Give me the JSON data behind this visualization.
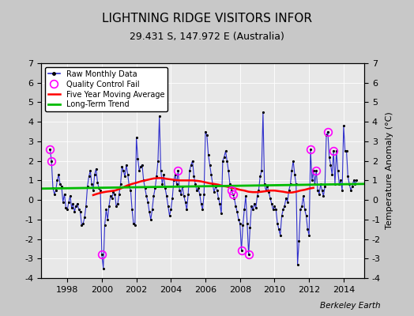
{
  "title": "LIGHTNING RIDGE VISITORS INFOR",
  "subtitle": "29.431 S, 147.972 E (Australia)",
  "ylabel": "Temperature Anomaly (°C)",
  "credit": "Berkeley Earth",
  "ylim": [
    -4,
    7
  ],
  "xlim": [
    1996.5,
    2015.2
  ],
  "yticks": [
    -4,
    -3,
    -2,
    -1,
    0,
    1,
    2,
    3,
    4,
    5,
    6,
    7
  ],
  "xticks": [
    1998,
    2000,
    2002,
    2004,
    2006,
    2008,
    2010,
    2012,
    2014
  ],
  "fig_bg_color": "#c8c8c8",
  "plot_bg_color": "#e8e8e8",
  "raw_color": "#3030cc",
  "ma_color": "#ff0000",
  "trend_color": "#00bb00",
  "qc_color": "#ff00ff",
  "raw_data": [
    [
      1997.0,
      2.6
    ],
    [
      1997.083,
      2.0
    ],
    [
      1997.167,
      0.6
    ],
    [
      1997.25,
      0.3
    ],
    [
      1997.333,
      0.5
    ],
    [
      1997.417,
      1.0
    ],
    [
      1997.5,
      1.3
    ],
    [
      1997.583,
      0.8
    ],
    [
      1997.667,
      0.7
    ],
    [
      1997.75,
      -0.1
    ],
    [
      1997.833,
      0.3
    ],
    [
      1997.917,
      -0.4
    ],
    [
      1998.0,
      -0.5
    ],
    [
      1998.083,
      -0.1
    ],
    [
      1998.167,
      0.2
    ],
    [
      1998.25,
      -0.4
    ],
    [
      1998.333,
      -0.2
    ],
    [
      1998.417,
      -0.6
    ],
    [
      1998.5,
      -0.3
    ],
    [
      1998.583,
      -0.2
    ],
    [
      1998.667,
      -0.5
    ],
    [
      1998.75,
      -0.6
    ],
    [
      1998.833,
      -1.3
    ],
    [
      1998.917,
      -1.2
    ],
    [
      1999.0,
      -0.9
    ],
    [
      1999.083,
      -0.3
    ],
    [
      1999.167,
      0.7
    ],
    [
      1999.25,
      1.2
    ],
    [
      1999.333,
      1.5
    ],
    [
      1999.417,
      0.8
    ],
    [
      1999.5,
      0.5
    ],
    [
      1999.583,
      1.3
    ],
    [
      1999.667,
      1.6
    ],
    [
      1999.75,
      0.9
    ],
    [
      1999.833,
      0.6
    ],
    [
      1999.917,
      0.5
    ],
    [
      2000.0,
      -2.8
    ],
    [
      2000.083,
      -3.5
    ],
    [
      2000.167,
      -1.3
    ],
    [
      2000.25,
      -0.5
    ],
    [
      2000.333,
      -1.0
    ],
    [
      2000.417,
      -0.3
    ],
    [
      2000.5,
      0.2
    ],
    [
      2000.583,
      0.1
    ],
    [
      2000.667,
      0.4
    ],
    [
      2000.75,
      0.3
    ],
    [
      2000.833,
      -0.3
    ],
    [
      2000.917,
      -0.2
    ],
    [
      2001.0,
      0.3
    ],
    [
      2001.083,
      0.8
    ],
    [
      2001.167,
      1.7
    ],
    [
      2001.25,
      1.5
    ],
    [
      2001.333,
      1.2
    ],
    [
      2001.417,
      1.8
    ],
    [
      2001.5,
      1.3
    ],
    [
      2001.583,
      0.7
    ],
    [
      2001.667,
      0.5
    ],
    [
      2001.75,
      -0.5
    ],
    [
      2001.833,
      -1.2
    ],
    [
      2001.917,
      -1.3
    ],
    [
      2002.0,
      3.2
    ],
    [
      2002.083,
      2.1
    ],
    [
      2002.167,
      1.5
    ],
    [
      2002.25,
      1.7
    ],
    [
      2002.333,
      1.8
    ],
    [
      2002.417,
      1.0
    ],
    [
      2002.5,
      0.6
    ],
    [
      2002.583,
      0.2
    ],
    [
      2002.667,
      -0.1
    ],
    [
      2002.75,
      -0.6
    ],
    [
      2002.833,
      -1.0
    ],
    [
      2002.917,
      -0.5
    ],
    [
      2003.0,
      0.2
    ],
    [
      2003.083,
      0.6
    ],
    [
      2003.167,
      1.2
    ],
    [
      2003.25,
      2.0
    ],
    [
      2003.333,
      4.3
    ],
    [
      2003.417,
      1.5
    ],
    [
      2003.5,
      0.8
    ],
    [
      2003.583,
      1.3
    ],
    [
      2003.667,
      0.6
    ],
    [
      2003.75,
      0.2
    ],
    [
      2003.833,
      -0.3
    ],
    [
      2003.917,
      -0.8
    ],
    [
      2004.0,
      -0.5
    ],
    [
      2004.083,
      0.1
    ],
    [
      2004.167,
      1.0
    ],
    [
      2004.25,
      1.3
    ],
    [
      2004.333,
      0.8
    ],
    [
      2004.417,
      1.5
    ],
    [
      2004.5,
      0.5
    ],
    [
      2004.583,
      0.3
    ],
    [
      2004.667,
      0.7
    ],
    [
      2004.75,
      0.2
    ],
    [
      2004.833,
      -0.1
    ],
    [
      2004.917,
      -0.5
    ],
    [
      2005.0,
      0.3
    ],
    [
      2005.083,
      1.5
    ],
    [
      2005.167,
      1.8
    ],
    [
      2005.25,
      2.0
    ],
    [
      2005.333,
      1.2
    ],
    [
      2005.417,
      0.8
    ],
    [
      2005.5,
      0.5
    ],
    [
      2005.583,
      0.6
    ],
    [
      2005.667,
      0.3
    ],
    [
      2005.75,
      -0.2
    ],
    [
      2005.833,
      -0.5
    ],
    [
      2005.917,
      0.3
    ],
    [
      2006.0,
      3.5
    ],
    [
      2006.083,
      3.3
    ],
    [
      2006.167,
      2.3
    ],
    [
      2006.25,
      1.8
    ],
    [
      2006.333,
      1.3
    ],
    [
      2006.417,
      0.8
    ],
    [
      2006.5,
      0.4
    ],
    [
      2006.583,
      0.7
    ],
    [
      2006.667,
      0.5
    ],
    [
      2006.75,
      0.1
    ],
    [
      2006.833,
      -0.2
    ],
    [
      2006.917,
      -0.7
    ],
    [
      2007.0,
      2.0
    ],
    [
      2007.083,
      2.2
    ],
    [
      2007.167,
      2.5
    ],
    [
      2007.25,
      2.0
    ],
    [
      2007.333,
      1.5
    ],
    [
      2007.417,
      0.8
    ],
    [
      2007.5,
      0.5
    ],
    [
      2007.583,
      0.3
    ],
    [
      2007.667,
      0.1
    ],
    [
      2007.75,
      -0.3
    ],
    [
      2007.833,
      -0.6
    ],
    [
      2007.917,
      -1.0
    ],
    [
      2008.0,
      -1.2
    ],
    [
      2008.083,
      -2.6
    ],
    [
      2008.167,
      -1.3
    ],
    [
      2008.25,
      -0.5
    ],
    [
      2008.333,
      0.2
    ],
    [
      2008.417,
      -1.2
    ],
    [
      2008.5,
      -2.8
    ],
    [
      2008.583,
      -1.4
    ],
    [
      2008.667,
      -0.3
    ],
    [
      2008.75,
      -0.5
    ],
    [
      2008.833,
      -0.2
    ],
    [
      2008.917,
      -0.4
    ],
    [
      2009.0,
      0.2
    ],
    [
      2009.083,
      0.5
    ],
    [
      2009.167,
      1.2
    ],
    [
      2009.25,
      1.5
    ],
    [
      2009.333,
      4.5
    ],
    [
      2009.417,
      0.8
    ],
    [
      2009.5,
      0.5
    ],
    [
      2009.583,
      0.7
    ],
    [
      2009.667,
      0.4
    ],
    [
      2009.75,
      0.1
    ],
    [
      2009.833,
      -0.2
    ],
    [
      2009.917,
      -0.5
    ],
    [
      2010.0,
      -0.3
    ],
    [
      2010.083,
      -0.5
    ],
    [
      2010.167,
      -1.2
    ],
    [
      2010.25,
      -1.5
    ],
    [
      2010.333,
      -1.8
    ],
    [
      2010.417,
      -0.8
    ],
    [
      2010.5,
      -0.5
    ],
    [
      2010.583,
      -0.3
    ],
    [
      2010.667,
      0.1
    ],
    [
      2010.75,
      -0.1
    ],
    [
      2010.833,
      0.5
    ],
    [
      2010.917,
      0.8
    ],
    [
      2011.0,
      1.5
    ],
    [
      2011.083,
      2.0
    ],
    [
      2011.167,
      1.3
    ],
    [
      2011.25,
      0.8
    ],
    [
      2011.333,
      -3.3
    ],
    [
      2011.417,
      -2.1
    ],
    [
      2011.5,
      -0.5
    ],
    [
      2011.583,
      -0.3
    ],
    [
      2011.667,
      0.2
    ],
    [
      2011.75,
      -0.5
    ],
    [
      2011.833,
      -0.8
    ],
    [
      2011.917,
      -1.5
    ],
    [
      2012.0,
      -1.8
    ],
    [
      2012.083,
      2.6
    ],
    [
      2012.167,
      1.0
    ],
    [
      2012.25,
      1.5
    ],
    [
      2012.333,
      0.8
    ],
    [
      2012.417,
      1.5
    ],
    [
      2012.5,
      0.5
    ],
    [
      2012.583,
      0.3
    ],
    [
      2012.667,
      0.8
    ],
    [
      2012.75,
      0.5
    ],
    [
      2012.833,
      0.2
    ],
    [
      2012.917,
      0.7
    ],
    [
      2013.0,
      3.3
    ],
    [
      2013.083,
      3.5
    ],
    [
      2013.167,
      2.2
    ],
    [
      2013.25,
      1.8
    ],
    [
      2013.333,
      1.3
    ],
    [
      2013.417,
      2.5
    ],
    [
      2013.5,
      0.8
    ],
    [
      2013.583,
      2.5
    ],
    [
      2013.667,
      1.5
    ],
    [
      2013.75,
      0.8
    ],
    [
      2013.833,
      1.0
    ],
    [
      2013.917,
      0.5
    ],
    [
      2014.0,
      3.8
    ],
    [
      2014.083,
      2.5
    ],
    [
      2014.167,
      2.5
    ],
    [
      2014.25,
      1.2
    ],
    [
      2014.333,
      0.8
    ],
    [
      2014.417,
      0.5
    ],
    [
      2014.5,
      0.7
    ],
    [
      2014.583,
      1.0
    ],
    [
      2014.667,
      0.8
    ],
    [
      2014.75,
      1.0
    ]
  ],
  "qc_fail": [
    [
      1997.0,
      2.6
    ],
    [
      1997.083,
      2.0
    ],
    [
      2000.0,
      -2.8
    ],
    [
      2004.417,
      1.5
    ],
    [
      2007.5,
      0.5
    ],
    [
      2007.583,
      0.3
    ],
    [
      2008.083,
      -2.6
    ],
    [
      2008.5,
      -2.8
    ],
    [
      2012.083,
      2.6
    ],
    [
      2012.417,
      1.5
    ],
    [
      2013.083,
      3.5
    ],
    [
      2013.417,
      2.5
    ]
  ],
  "moving_avg": [
    [
      1999.5,
      0.25
    ],
    [
      1999.75,
      0.32
    ],
    [
      2000.0,
      0.38
    ],
    [
      2000.25,
      0.42
    ],
    [
      2000.5,
      0.45
    ],
    [
      2000.75,
      0.48
    ],
    [
      2001.0,
      0.55
    ],
    [
      2001.25,
      0.65
    ],
    [
      2001.5,
      0.75
    ],
    [
      2001.75,
      0.82
    ],
    [
      2002.0,
      0.88
    ],
    [
      2002.25,
      0.95
    ],
    [
      2002.5,
      1.0
    ],
    [
      2002.75,
      1.05
    ],
    [
      2003.0,
      1.1
    ],
    [
      2003.25,
      1.12
    ],
    [
      2003.5,
      1.12
    ],
    [
      2003.75,
      1.08
    ],
    [
      2004.0,
      1.05
    ],
    [
      2004.25,
      1.02
    ],
    [
      2004.5,
      1.0
    ],
    [
      2004.75,
      1.0
    ],
    [
      2005.0,
      1.0
    ],
    [
      2005.25,
      1.0
    ],
    [
      2005.5,
      0.98
    ],
    [
      2005.75,
      0.95
    ],
    [
      2006.0,
      0.9
    ],
    [
      2006.25,
      0.85
    ],
    [
      2006.5,
      0.82
    ],
    [
      2006.75,
      0.78
    ],
    [
      2007.0,
      0.72
    ],
    [
      2007.25,
      0.68
    ],
    [
      2007.5,
      0.62
    ],
    [
      2007.75,
      0.58
    ],
    [
      2008.0,
      0.52
    ],
    [
      2008.25,
      0.48
    ],
    [
      2008.5,
      0.42
    ],
    [
      2008.75,
      0.4
    ],
    [
      2009.0,
      0.4
    ],
    [
      2009.25,
      0.42
    ],
    [
      2009.5,
      0.45
    ],
    [
      2009.75,
      0.48
    ],
    [
      2010.0,
      0.48
    ],
    [
      2010.25,
      0.45
    ],
    [
      2010.5,
      0.42
    ],
    [
      2010.75,
      0.38
    ],
    [
      2011.0,
      0.38
    ],
    [
      2011.25,
      0.42
    ],
    [
      2011.5,
      0.48
    ],
    [
      2011.75,
      0.52
    ],
    [
      2012.0,
      0.58
    ],
    [
      2012.25,
      0.62
    ]
  ],
  "trend_x": [
    1996.5,
    2015.2
  ],
  "trend_y": [
    0.58,
    0.82
  ]
}
